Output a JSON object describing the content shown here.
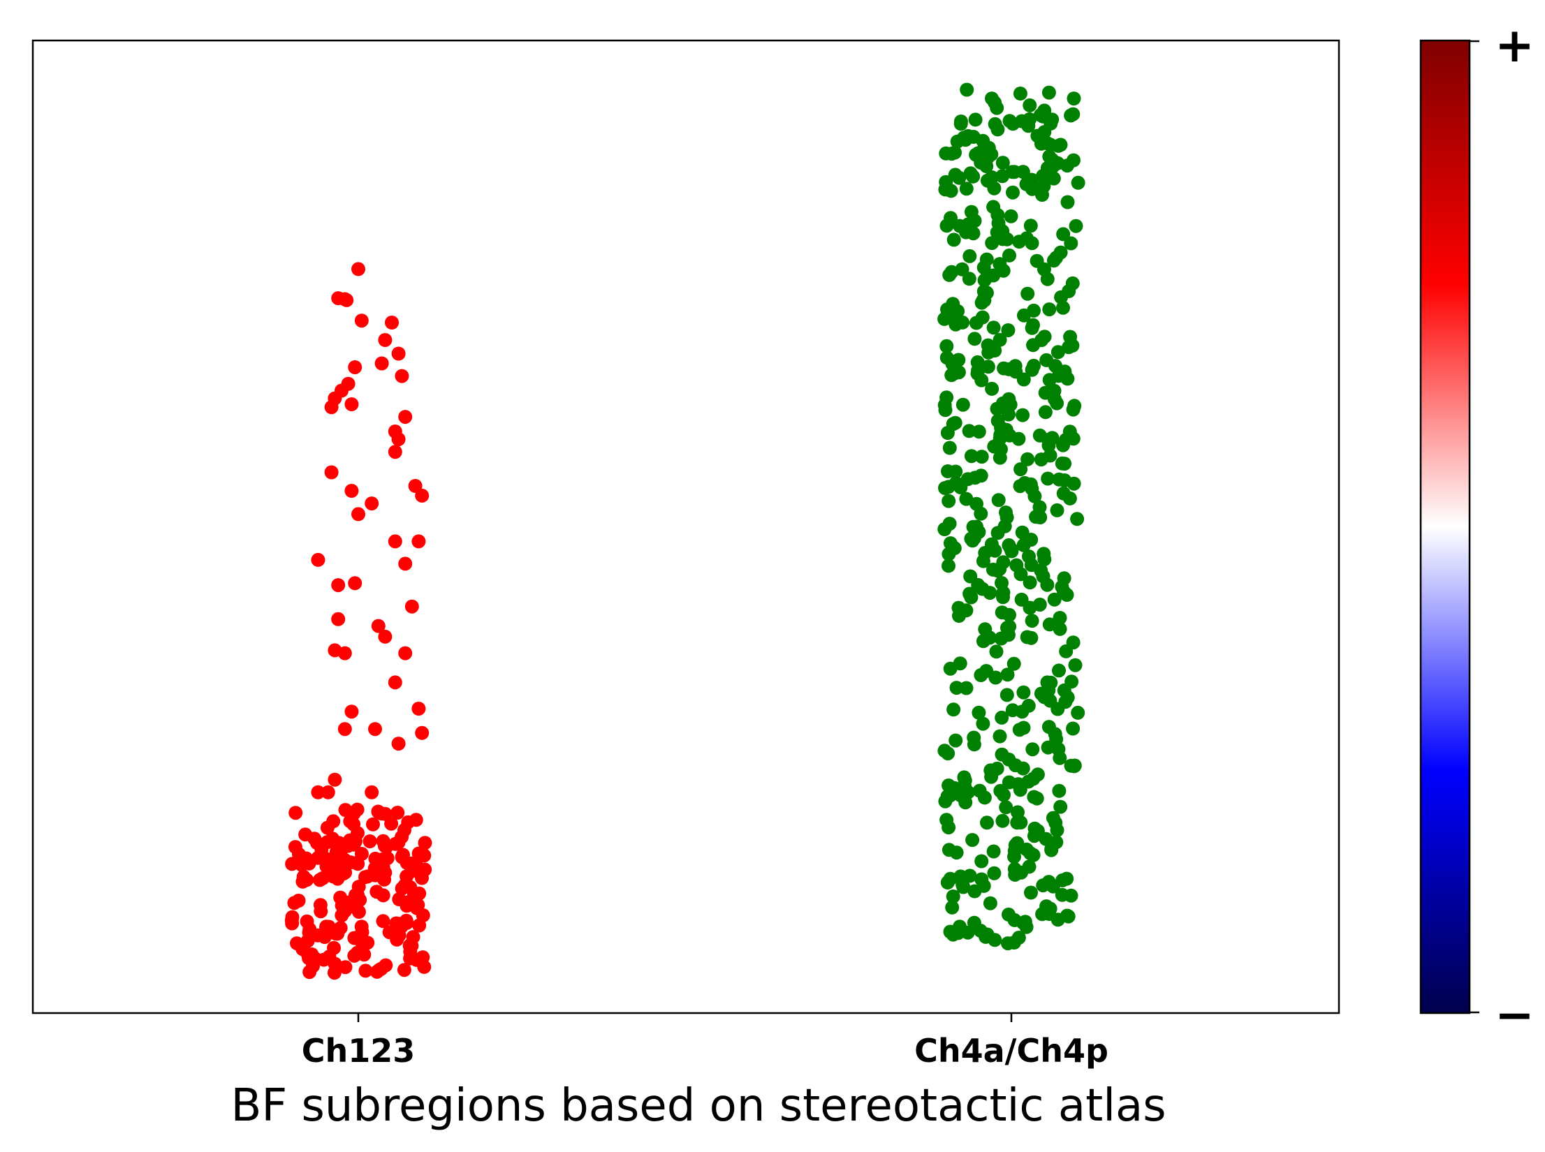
{
  "chart_data": {
    "type": "scatter",
    "title": "",
    "xlabel": "BF subregions based on stereotactic atlas",
    "ylabel": "",
    "categories": [
      "Ch123",
      "Ch4a/Ch4p"
    ],
    "ylim": [
      0,
      1
    ],
    "grid": false,
    "legend": "none",
    "series": [
      {
        "category": "Ch123",
        "color": "#ff0000",
        "count_dense": 190,
        "dense_range": [
          0.04,
          0.21
        ],
        "sparse_points": [
          [
            0.0,
            0.765
          ],
          [
            -0.06,
            0.735
          ],
          [
            -0.04,
            0.734
          ],
          [
            -0.035,
            0.733
          ],
          [
            0.01,
            0.712
          ],
          [
            0.1,
            0.71
          ],
          [
            0.08,
            0.692
          ],
          [
            0.12,
            0.678
          ],
          [
            0.07,
            0.668
          ],
          [
            -0.01,
            0.664
          ],
          [
            0.13,
            0.655
          ],
          [
            -0.03,
            0.647
          ],
          [
            -0.05,
            0.64
          ],
          [
            -0.07,
            0.632
          ],
          [
            -0.08,
            0.623
          ],
          [
            -0.02,
            0.626
          ],
          [
            0.14,
            0.613
          ],
          [
            0.11,
            0.598
          ],
          [
            0.12,
            0.59
          ],
          [
            0.11,
            0.577
          ],
          [
            -0.08,
            0.556
          ],
          [
            0.17,
            0.542
          ],
          [
            -0.02,
            0.537
          ],
          [
            0.19,
            0.532
          ],
          [
            0.04,
            0.524
          ],
          [
            0.0,
            0.513
          ],
          [
            0.11,
            0.485
          ],
          [
            0.18,
            0.485
          ],
          [
            -0.12,
            0.466
          ],
          [
            0.14,
            0.462
          ],
          [
            -0.06,
            0.44
          ],
          [
            -0.01,
            0.442
          ],
          [
            0.16,
            0.418
          ],
          [
            -0.06,
            0.405
          ],
          [
            0.06,
            0.398
          ],
          [
            0.08,
            0.387
          ],
          [
            -0.07,
            0.373
          ],
          [
            -0.04,
            0.37
          ],
          [
            0.14,
            0.37
          ],
          [
            0.11,
            0.34
          ],
          [
            0.18,
            0.313
          ],
          [
            -0.02,
            0.31
          ],
          [
            0.19,
            0.288
          ],
          [
            -0.04,
            0.292
          ],
          [
            0.05,
            0.292
          ],
          [
            0.12,
            0.277
          ],
          [
            -0.07,
            0.24
          ],
          [
            -0.12,
            0.227
          ],
          [
            -0.09,
            0.227
          ],
          [
            0.04,
            0.227
          ]
        ]
      },
      {
        "category": "Ch4a/Ch4p",
        "color": "#008000",
        "count": 520,
        "range": [
          0.07,
          0.95
        ]
      }
    ]
  },
  "colorbar": {
    "colormap": "seismic",
    "top_label": "+",
    "bottom_label": "−"
  }
}
